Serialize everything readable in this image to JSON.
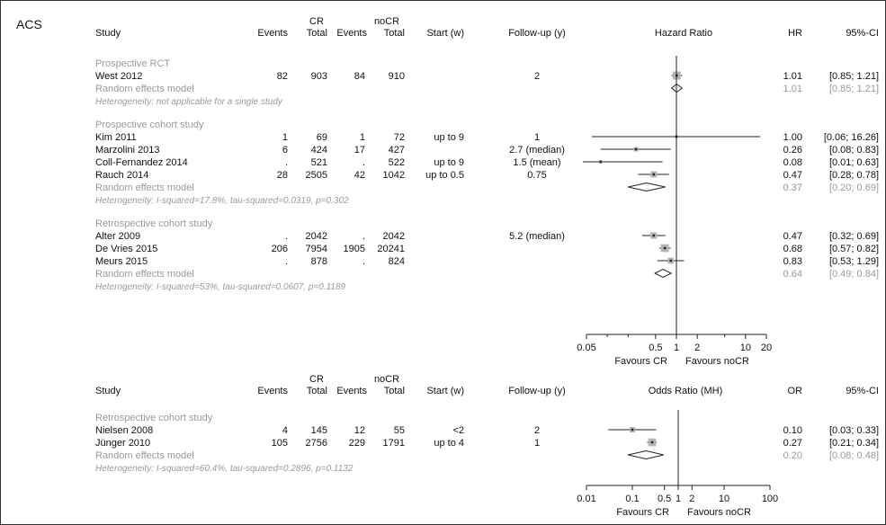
{
  "panel_label": "ACS",
  "colors": {
    "text": "#111111",
    "grey": "#9a9a9a",
    "box": "#b4b4b4",
    "line": "#222222"
  },
  "chart_data": [
    {
      "type": "forest",
      "measure": "Hazard Ratio",
      "header": {
        "group1": "CR",
        "group2": "noCR",
        "study": "Study",
        "events": "Events",
        "total": "Total",
        "start": "Start (w)",
        "followup": "Follow-up (y)",
        "plot_title": "Hazard Ratio",
        "est": "HR",
        "ci": "95%-CI"
      },
      "axis": {
        "scale": "log",
        "range": [
          0.05,
          20
        ],
        "ticks": [
          0.05,
          0.5,
          1,
          2,
          10,
          20
        ],
        "tick_labels": [
          "0.05",
          "0.5",
          "1",
          "2",
          "10",
          "20"
        ],
        "minor_ticks": [
          0.1,
          0.2,
          5
        ]
      },
      "favours_left": "Favours CR",
      "favours_right": "Favours noCR",
      "subgroups": [
        {
          "title": "Prospective RCT",
          "studies": [
            {
              "name": "West 2012",
              "e1": "82",
              "n1": "903",
              "e2": "84",
              "n2": "910",
              "start": "",
              "followup": "2",
              "est": 1.01,
              "lo": 0.85,
              "hi": 1.21,
              "est_text": "1.01",
              "ci_text": "[0.85; 1.21]",
              "weight": 1.0
            }
          ],
          "pooled": {
            "label": "Random effects model",
            "est": 1.01,
            "lo": 0.85,
            "hi": 1.21,
            "est_text": "1.01",
            "ci_text": "[0.85; 1.21]"
          },
          "het": "Heterogeneity: not applicable for a single study"
        },
        {
          "title": "Prospective cohort study",
          "studies": [
            {
              "name": "Kim 2011",
              "e1": "1",
              "n1": "69",
              "e2": "1",
              "n2": "72",
              "start": "up to 9",
              "followup": "1",
              "est": 1.0,
              "lo": 0.06,
              "hi": 16.26,
              "est_text": "1.00",
              "ci_text": "[0.06; 16.26]",
              "weight": 0.1
            },
            {
              "name": "Marzolini 2013",
              "e1": "6",
              "n1": "424",
              "e2": "17",
              "n2": "427",
              "start": "",
              "followup": "2.7 (median)",
              "est": 0.26,
              "lo": 0.08,
              "hi": 0.83,
              "est_text": "0.26",
              "ci_text": "[0.08; 0.83]",
              "weight": 0.35
            },
            {
              "name": "Coll-Fernandez 2014",
              "e1": ".",
              "n1": "521",
              "e2": ".",
              "n2": "522",
              "start": "up to 9",
              "followup": "1.5 (mean)",
              "est": 0.08,
              "lo": 0.01,
              "hi": 0.63,
              "est_text": "0.08",
              "ci_text": "[0.01; 0.63]",
              "weight": 0.2
            },
            {
              "name": "Rauch 2014",
              "e1": "28",
              "n1": "2505",
              "e2": "42",
              "n2": "1042",
              "start": "up to 0.5",
              "followup": "0.75",
              "est": 0.47,
              "lo": 0.28,
              "hi": 0.78,
              "est_text": "0.47",
              "ci_text": "[0.28; 0.78]",
              "weight": 0.65
            }
          ],
          "pooled": {
            "label": "Random effects model",
            "est": 0.37,
            "lo": 0.2,
            "hi": 0.69,
            "est_text": "0.37",
            "ci_text": "[0.20; 0.69]"
          },
          "het": "Heterogeneity: I-squared=17.8%, tau-squared=0.0319, p=0.302"
        },
        {
          "title": "Retrospective cohort study",
          "studies": [
            {
              "name": "Alter 2009",
              "e1": ".",
              "n1": "2042",
              "e2": ".",
              "n2": "2042",
              "start": "",
              "followup": "5.2 (median)",
              "est": 0.47,
              "lo": 0.32,
              "hi": 0.69,
              "est_text": "0.47",
              "ci_text": "[0.32; 0.69]",
              "weight": 0.7
            },
            {
              "name": "De Vries 2015",
              "e1": "206",
              "n1": "7954",
              "e2": "1905",
              "n2": "20241",
              "start": "",
              "followup": "",
              "est": 0.68,
              "lo": 0.57,
              "hi": 0.82,
              "est_text": "0.68",
              "ci_text": "[0.57; 0.82]",
              "weight": 0.95
            },
            {
              "name": "Meurs 2015",
              "e1": ".",
              "n1": "878",
              "e2": ".",
              "n2": "824",
              "start": "",
              "followup": "",
              "est": 0.83,
              "lo": 0.53,
              "hi": 1.29,
              "est_text": "0.83",
              "ci_text": "[0.53; 1.29]",
              "weight": 0.6
            }
          ],
          "pooled": {
            "label": "Random effects model",
            "est": 0.64,
            "lo": 0.49,
            "hi": 0.84,
            "est_text": "0.64",
            "ci_text": "[0.49; 0.84]"
          },
          "het": "Heterogeneity: I-squared=53%, tau-squared=0.0607, p=0.1189"
        }
      ]
    },
    {
      "type": "forest",
      "measure": "Odds Ratio (MH)",
      "header": {
        "group1": "CR",
        "group2": "noCR",
        "study": "Study",
        "events": "Events",
        "total": "Total",
        "start": "Start (w)",
        "followup": "Follow-up (y)",
        "plot_title": "Odds Ratio (MH)",
        "est": "OR",
        "ci": "95%-CI"
      },
      "axis": {
        "scale": "log",
        "range": [
          0.01,
          100
        ],
        "ticks": [
          0.01,
          0.1,
          0.5,
          1,
          2,
          10,
          100
        ],
        "tick_labels": [
          "0.01",
          "0.1",
          "0.5",
          "1",
          "2",
          "10",
          "100"
        ],
        "minor_ticks": []
      },
      "favours_left": "Favours CR",
      "favours_right": "Favours noCR",
      "subgroups": [
        {
          "title": "Retrospective cohort study",
          "studies": [
            {
              "name": "Nielsen 2008",
              "e1": "4",
              "n1": "145",
              "e2": "12",
              "n2": "55",
              "start": "<2",
              "followup": "2",
              "est": 0.1,
              "lo": 0.03,
              "hi": 0.33,
              "est_text": "0.10",
              "ci_text": "[0.03; 0.33]",
              "weight": 0.5
            },
            {
              "name": "Jünger 2010",
              "e1": "105",
              "n1": "2756",
              "e2": "229",
              "n2": "1791",
              "start": "up to 4",
              "followup": "1",
              "est": 0.27,
              "lo": 0.21,
              "hi": 0.34,
              "est_text": "0.27",
              "ci_text": "[0.21; 0.34]",
              "weight": 0.95
            }
          ],
          "pooled": {
            "label": "Random effects model",
            "est": 0.2,
            "lo": 0.08,
            "hi": 0.48,
            "est_text": "0.20",
            "ci_text": "[0.08; 0.48]"
          },
          "het": "Heterogeneity: I-squared=60.4%, tau-squared=0.2896, p=0.1132"
        }
      ]
    }
  ]
}
